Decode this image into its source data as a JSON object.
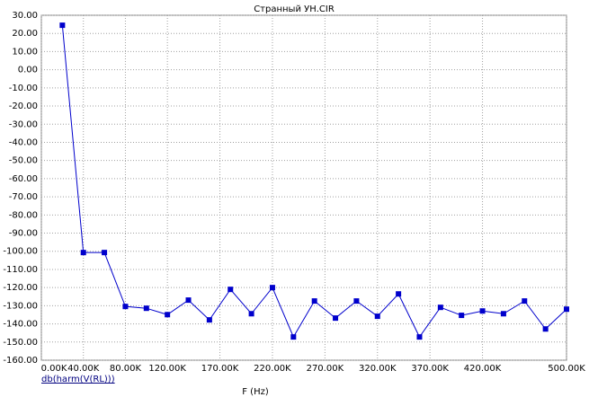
{
  "chart_data": {
    "type": "line",
    "title": "Странный УН.CIR",
    "x_label": "F (Hz)",
    "x": [
      20000,
      40000,
      60000,
      80000,
      100000,
      120000,
      140000,
      160000,
      180000,
      200000,
      220000,
      240000,
      260000,
      280000,
      300000,
      320000,
      340000,
      360000,
      380000,
      400000,
      420000,
      440000,
      460000,
      480000,
      500000
    ],
    "series": [
      {
        "name": "db(harm(V(RL)))",
        "color": "#0000cc",
        "values": [
          24.5,
          -100.7,
          -100.7,
          -130.4,
          -131.4,
          -134.9,
          -126.9,
          -137.8,
          -121.0,
          -134.4,
          -120.0,
          -147.2,
          -127.4,
          -136.8,
          -127.4,
          -135.8,
          -123.5,
          -147.2,
          -130.9,
          -135.3,
          -132.9,
          -134.4,
          -127.4,
          -142.8,
          -131.9
        ]
      }
    ],
    "xlim": [
      0,
      500000
    ],
    "xticks": [
      {
        "value": 0,
        "label": "0.00K"
      },
      {
        "value": 40000,
        "label": "40.00K"
      },
      {
        "value": 80000,
        "label": "80.00K"
      },
      {
        "value": 120000,
        "label": "120.00K"
      },
      {
        "value": 170000,
        "label": "170.00K"
      },
      {
        "value": 220000,
        "label": "220.00K"
      },
      {
        "value": 270000,
        "label": "270.00K"
      },
      {
        "value": 320000,
        "label": "320.00K"
      },
      {
        "value": 370000,
        "label": "370.00K"
      },
      {
        "value": 420000,
        "label": "420.00K"
      },
      {
        "value": 500000,
        "label": "500.00K"
      }
    ],
    "ylim": [
      -160,
      30
    ],
    "yticks": [
      {
        "value": 30,
        "label": "30.00"
      },
      {
        "value": 20,
        "label": "20.00"
      },
      {
        "value": 10,
        "label": "10.00"
      },
      {
        "value": 0,
        "label": "0.00"
      },
      {
        "value": -10,
        "label": "-10.00"
      },
      {
        "value": -20,
        "label": "-20.00"
      },
      {
        "value": -30,
        "label": "-30.00"
      },
      {
        "value": -40,
        "label": "-40.00"
      },
      {
        "value": -50,
        "label": "-50.00"
      },
      {
        "value": -60,
        "label": "-60.00"
      },
      {
        "value": -70,
        "label": "-70.00"
      },
      {
        "value": -80,
        "label": "-80.00"
      },
      {
        "value": -90,
        "label": "-90.00"
      },
      {
        "value": -100,
        "label": "-100.00"
      },
      {
        "value": -110,
        "label": "-110.00"
      },
      {
        "value": -120,
        "label": "-120.00"
      },
      {
        "value": -130,
        "label": "-130.00"
      },
      {
        "value": -140,
        "label": "-140.00"
      },
      {
        "value": -150,
        "label": "-150.00"
      },
      {
        "value": -160,
        "label": "-160.00"
      }
    ],
    "grid": true
  }
}
